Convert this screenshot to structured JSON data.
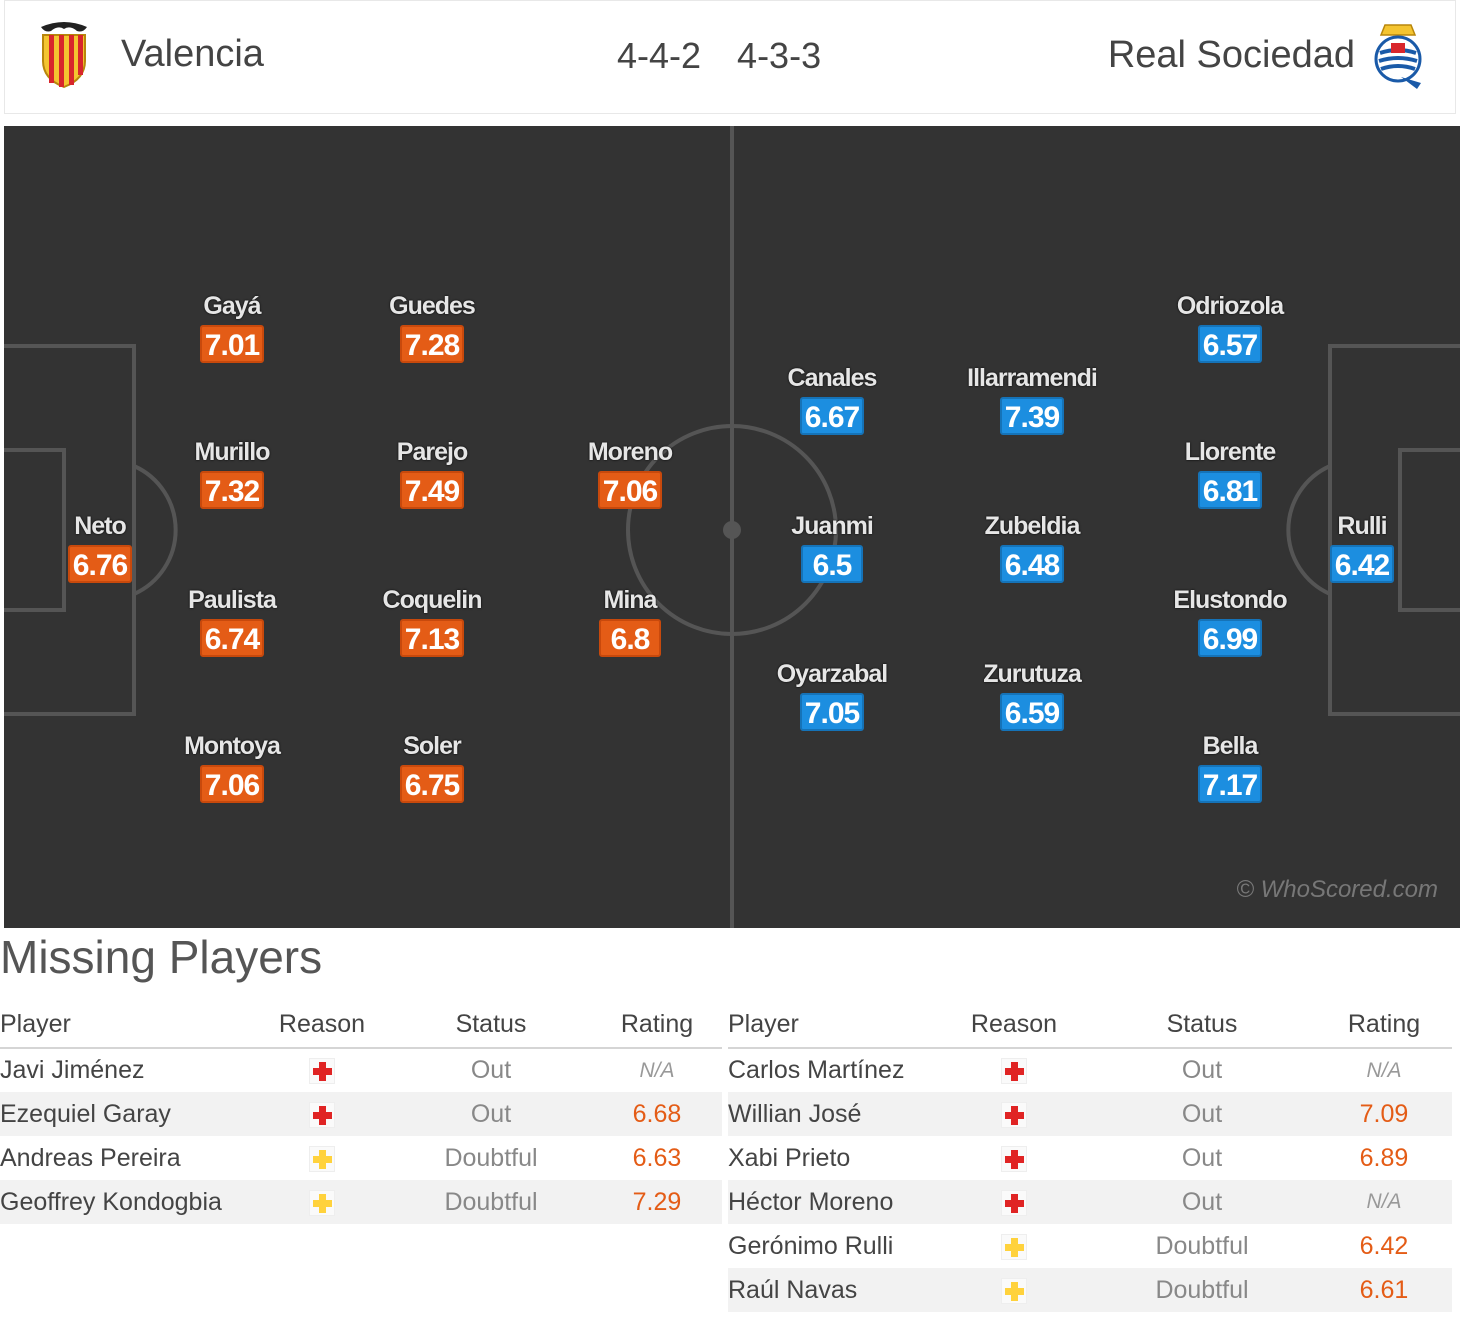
{
  "header": {
    "home_team": "Valencia",
    "home_formation": "4-4-2",
    "away_formation": "4-3-3",
    "away_team": "Real Sociedad",
    "home_crest_icon": "valencia-bat-crest-icon",
    "away_crest_icon": "real-sociedad-crest-icon"
  },
  "colors": {
    "home_rating": "#e45c16",
    "away_rating": "#1c8ee0",
    "pitch": "#333333"
  },
  "pitch": {
    "watermark": "© WhoScored.com",
    "home": [
      {
        "name": "Neto",
        "rating": "6.76"
      },
      {
        "name": "Gayá",
        "rating": "7.01"
      },
      {
        "name": "Murillo",
        "rating": "7.32"
      },
      {
        "name": "Paulista",
        "rating": "6.74"
      },
      {
        "name": "Montoya",
        "rating": "7.06"
      },
      {
        "name": "Guedes",
        "rating": "7.28"
      },
      {
        "name": "Parejo",
        "rating": "7.49"
      },
      {
        "name": "Coquelin",
        "rating": "7.13"
      },
      {
        "name": "Soler",
        "rating": "6.75"
      },
      {
        "name": "Moreno",
        "rating": "7.06"
      },
      {
        "name": "Mina",
        "rating": "6.8"
      }
    ],
    "away": [
      {
        "name": "Canales",
        "rating": "6.67"
      },
      {
        "name": "Juanmi",
        "rating": "6.5"
      },
      {
        "name": "Oyarzabal",
        "rating": "7.05"
      },
      {
        "name": "Illarramendi",
        "rating": "7.39"
      },
      {
        "name": "Zubeldia",
        "rating": "6.48"
      },
      {
        "name": "Zurutuza",
        "rating": "6.59"
      },
      {
        "name": "Odriozola",
        "rating": "6.57"
      },
      {
        "name": "Llorente",
        "rating": "6.81"
      },
      {
        "name": "Elustondo",
        "rating": "6.99"
      },
      {
        "name": "Bella",
        "rating": "7.17"
      },
      {
        "name": "Rulli",
        "rating": "6.42"
      }
    ]
  },
  "missing": {
    "title": "Missing Players",
    "columns": {
      "player": "Player",
      "reason": "Reason",
      "status": "Status",
      "rating": "Rating"
    },
    "home": [
      {
        "player": "Javi Jiménez",
        "reason": "injury-red",
        "status": "Out",
        "rating": "N/A"
      },
      {
        "player": "Ezequiel Garay",
        "reason": "injury-red",
        "status": "Out",
        "rating": "6.68"
      },
      {
        "player": "Andreas Pereira",
        "reason": "doubtful-yellow",
        "status": "Doubtful",
        "rating": "6.63"
      },
      {
        "player": "Geoffrey Kondogbia",
        "reason": "doubtful-yellow",
        "status": "Doubtful",
        "rating": "7.29"
      }
    ],
    "away": [
      {
        "player": "Carlos Martínez",
        "reason": "injury-red",
        "status": "Out",
        "rating": "N/A"
      },
      {
        "player": "Willian José",
        "reason": "injury-red",
        "status": "Out",
        "rating": "7.09"
      },
      {
        "player": "Xabi Prieto",
        "reason": "injury-red",
        "status": "Out",
        "rating": "6.89"
      },
      {
        "player": "Héctor Moreno",
        "reason": "injury-red",
        "status": "Out",
        "rating": "N/A"
      },
      {
        "player": "Gerónimo Rulli",
        "reason": "doubtful-yellow",
        "status": "Doubtful",
        "rating": "6.42"
      },
      {
        "player": "Raúl Navas",
        "reason": "doubtful-yellow",
        "status": "Doubtful",
        "rating": "6.61"
      }
    ]
  }
}
